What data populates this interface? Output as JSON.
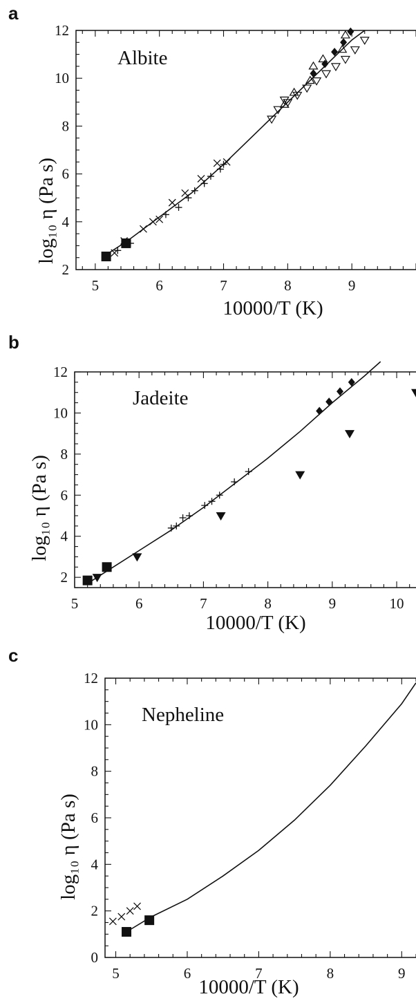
{
  "panels": [
    {
      "letter": "a",
      "mineral": "Albite",
      "ylabel": "log₁₀ η (Pa s)",
      "xlabel": "10000/T (K)"
    },
    {
      "letter": "b",
      "mineral": "Jadeite",
      "ylabel": "log₁₀ η (Pa s)",
      "xlabel": "10000/T (K)"
    },
    {
      "letter": "c",
      "mineral": "Nepheline",
      "ylabel": "log₁₀ η (Pa s)",
      "xlabel": "10000/T (K)"
    }
  ],
  "chart_data": [
    {
      "type": "scatter",
      "title": "Albite",
      "xlabel": "10000/T (K)",
      "ylabel": "log10 η (Pa s)",
      "xlim": [
        4.7,
        10
      ],
      "ylim": [
        2,
        12
      ],
      "x_ticks": [
        5,
        6,
        7,
        8,
        9
      ],
      "y_ticks": [
        2,
        4,
        6,
        8,
        10,
        12
      ],
      "grid": false,
      "series": [
        {
          "marker": "filled-square",
          "x": [
            5.17,
            5.48
          ],
          "y": [
            2.55,
            3.1
          ]
        },
        {
          "marker": "cross",
          "x": [
            5.3,
            5.45,
            5.75,
            5.9,
            6.0,
            6.2,
            6.4,
            6.65,
            6.9,
            7.05
          ],
          "y": [
            2.7,
            3.2,
            3.7,
            4.0,
            4.1,
            4.8,
            5.2,
            5.8,
            6.45,
            6.5
          ]
        },
        {
          "marker": "plus",
          "x": [
            5.35,
            5.55,
            6.1,
            6.3,
            6.45,
            6.55,
            6.7,
            6.8,
            6.95,
            7.0
          ],
          "y": [
            2.8,
            3.1,
            4.3,
            4.6,
            5.0,
            5.3,
            5.6,
            5.9,
            6.2,
            6.4
          ]
        },
        {
          "marker": "open-triangle-down",
          "x": [
            7.75,
            7.85,
            7.95,
            8.0,
            8.15,
            8.3,
            8.45,
            8.6,
            8.75,
            8.9,
            9.05,
            9.2
          ],
          "y": [
            8.3,
            8.7,
            9.1,
            9.0,
            9.3,
            9.6,
            9.9,
            10.2,
            10.5,
            10.8,
            11.2,
            11.6
          ]
        },
        {
          "marker": "open-triangle-up",
          "x": [
            7.95,
            8.1,
            8.35,
            8.4,
            8.55,
            8.85,
            8.9
          ],
          "y": [
            8.9,
            9.4,
            9.9,
            10.5,
            10.8,
            11.2,
            11.8
          ]
        },
        {
          "marker": "filled-diamond",
          "x": [
            8.4,
            8.58,
            8.73,
            8.87,
            8.98
          ],
          "y": [
            10.2,
            10.6,
            11.1,
            11.5,
            11.95
          ]
        }
      ],
      "curve": {
        "x": [
          5.1,
          5.5,
          6.0,
          6.5,
          7.0,
          7.5,
          8.0,
          8.5,
          9.0,
          9.2
        ],
        "y": [
          2.5,
          3.2,
          4.2,
          5.2,
          6.4,
          7.7,
          9.0,
          10.3,
          11.6,
          12.0
        ]
      }
    },
    {
      "type": "scatter",
      "title": "Jadeite",
      "xlabel": "10000/T (K)",
      "ylabel": "log10 η (Pa s)",
      "xlim": [
        5,
        10.3
      ],
      "ylim": [
        1.5,
        12
      ],
      "x_ticks": [
        5,
        6,
        7,
        8,
        9,
        10
      ],
      "y_ticks": [
        2,
        4,
        6,
        8,
        10,
        12
      ],
      "grid": false,
      "series": [
        {
          "marker": "filled-square",
          "x": [
            5.2,
            5.5
          ],
          "y": [
            1.85,
            2.5
          ]
        },
        {
          "marker": "filled-triangle-down",
          "x": [
            5.35,
            5.97,
            7.27,
            8.5,
            9.27,
            10.3
          ],
          "y": [
            2.0,
            3.0,
            5.0,
            7.0,
            9.0,
            11.0
          ]
        },
        {
          "marker": "plus",
          "x": [
            6.5,
            6.58,
            6.68,
            6.78,
            7.02,
            7.13,
            7.25,
            7.48,
            7.7
          ],
          "y": [
            4.4,
            4.5,
            4.9,
            5.0,
            5.5,
            5.7,
            6.0,
            6.65,
            7.15
          ]
        },
        {
          "marker": "filled-diamond",
          "x": [
            8.8,
            8.95,
            9.12,
            9.3
          ],
          "y": [
            10.1,
            10.55,
            11.05,
            11.5
          ]
        }
      ],
      "curve": {
        "x": [
          5.2,
          5.5,
          6.0,
          6.5,
          7.0,
          7.5,
          8.0,
          8.5,
          9.0,
          9.5,
          9.75
        ],
        "y": [
          1.7,
          2.3,
          3.3,
          4.3,
          5.4,
          6.6,
          7.8,
          9.1,
          10.5,
          11.8,
          12.5
        ]
      }
    },
    {
      "type": "scatter",
      "title": "Nepheline",
      "xlabel": "10000/T (K)",
      "ylabel": "log10 η (Pa s)",
      "xlim": [
        4.85,
        9.2
      ],
      "ylim": [
        0,
        12
      ],
      "x_ticks": [
        5,
        6,
        7,
        8,
        9
      ],
      "y_ticks": [
        0,
        2,
        4,
        6,
        8,
        10,
        12
      ],
      "grid": false,
      "series": [
        {
          "marker": "filled-square",
          "x": [
            5.15,
            5.47
          ],
          "y": [
            1.1,
            1.6
          ]
        },
        {
          "marker": "cross",
          "x": [
            4.96,
            5.08,
            5.2,
            5.3
          ],
          "y": [
            1.55,
            1.75,
            2.0,
            2.2
          ]
        }
      ],
      "curve": {
        "x": [
          5.15,
          5.5,
          6.0,
          6.5,
          7.0,
          7.5,
          8.0,
          8.5,
          9.0,
          9.2
        ],
        "y": [
          1.1,
          1.75,
          2.5,
          3.5,
          4.6,
          5.9,
          7.4,
          9.1,
          10.9,
          11.8
        ]
      }
    }
  ]
}
